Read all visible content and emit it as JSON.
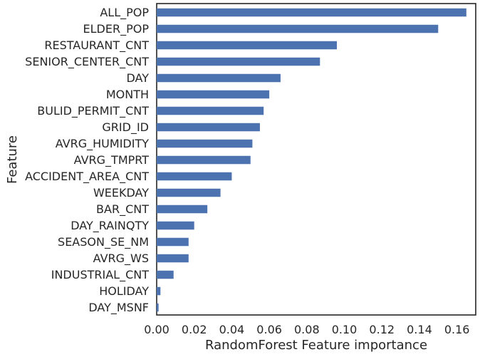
{
  "chart_data": {
    "type": "bar",
    "orientation": "horizontal",
    "xlabel": "RandomForest Feature importance",
    "ylabel": "Feature",
    "xlim": [
      0,
      0.17
    ],
    "xticks": [
      "0.00",
      "0.02",
      "0.04",
      "0.06",
      "0.08",
      "0.10",
      "0.12",
      "0.14",
      "0.16"
    ],
    "bar_color": "#4c72b0",
    "grid": false,
    "categories": [
      "ALL_POP",
      "ELDER_POP",
      "RESTAURANT_CNT",
      "SENIOR_CENTER_CNT",
      "DAY",
      "MONTH",
      "BULID_PERMIT_CNT",
      "GRID_ID",
      "AVRG_HUMIDITY",
      "AVRG_TMPRT",
      "ACCIDENT_AREA_CNT",
      "WEEKDAY",
      "BAR_CNT",
      "DAY_RAINQTY",
      "SEASON_SE_NM",
      "AVRG_WS",
      "INDUSTRIAL_CNT",
      "HOLIDAY",
      "DAY_MSNF"
    ],
    "values": [
      0.165,
      0.15,
      0.096,
      0.087,
      0.066,
      0.06,
      0.057,
      0.055,
      0.051,
      0.05,
      0.04,
      0.034,
      0.027,
      0.02,
      0.017,
      0.017,
      0.009,
      0.002,
      0.001
    ]
  }
}
